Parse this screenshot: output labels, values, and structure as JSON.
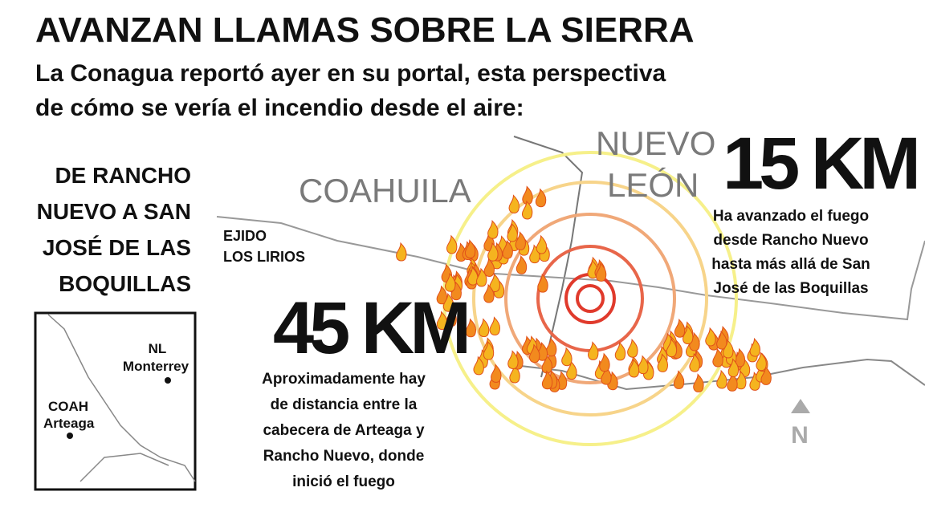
{
  "header": {
    "title": "AVANZAN LLAMAS SOBRE LA SIERRA",
    "subtitle": [
      "La Conagua reportó ayer en su portal, esta perspectiva",
      "de cómo se vería el incendio desde el aire:"
    ]
  },
  "sidebar": {
    "heading": [
      "DE RANCHO",
      "NUEVO A SAN",
      "JOSÉ DE LAS",
      "BOQUILLAS"
    ]
  },
  "inset": {
    "state_nl": "NL",
    "city_monterrey": "Monterrey",
    "state_coah": "COAH",
    "city_arteaga": "Arteaga"
  },
  "map": {
    "coahuila": "COAHUILA",
    "nuevo_leon": [
      "NUEVO",
      "LEÓN"
    ],
    "ejido": [
      "EJIDO",
      "LOS LIRIOS"
    ],
    "north": "N"
  },
  "stats": [
    {
      "value": "15 KM",
      "text": [
        "Ha avanzado el fuego",
        "desde Rancho Nuevo",
        "hasta más allá de San",
        "José de las Boquillas"
      ]
    },
    {
      "value": "45 KM",
      "text": [
        "Aproximadamente hay",
        "de distancia entre la",
        "cabecera de Arteaga y",
        "Rancho Nuevo, donde",
        "inició el fuego"
      ]
    }
  ]
}
